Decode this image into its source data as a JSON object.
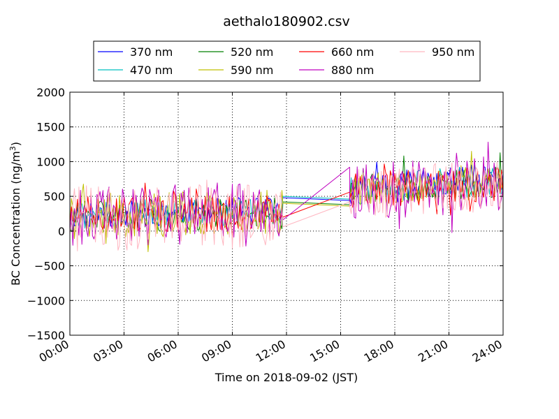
{
  "chart_data": {
    "type": "line",
    "title": "aethalo180902.csv",
    "xlabel": "Time on 2018-09-02 (JST)",
    "ylabel": "BC Concentration (ng/m³)",
    "xlim": [
      0,
      24
    ],
    "ylim": [
      -1500,
      2000
    ],
    "x_ticks": [
      0,
      3,
      6,
      9,
      12,
      15,
      18,
      21,
      24
    ],
    "x_tick_labels": [
      "00:00",
      "03:00",
      "06:00",
      "09:00",
      "12:00",
      "15:00",
      "18:00",
      "21:00",
      "24:00"
    ],
    "y_ticks": [
      -1500,
      -1000,
      -500,
      0,
      500,
      1000,
      1500,
      2000
    ],
    "y_tick_labels": [
      "−1500",
      "−1000",
      "−500",
      "0",
      "500",
      "1000",
      "1500",
      "2000"
    ],
    "grid": true,
    "legend_position": "top-center",
    "legend_columns": 4,
    "sampling_interval_minutes": 5,
    "gap": [
      11.8,
      15.5
    ],
    "series": [
      {
        "name": "370 nm",
        "color": "#0000ff",
        "gap_y": [
          480,
          440
        ],
        "segments": [
          {
            "x0": 0,
            "x1": 11.8,
            "base": 230,
            "trend": 80,
            "amp": 190,
            "seed": 11
          },
          {
            "x0": 15.5,
            "x1": 24,
            "base": 600,
            "trend": 150,
            "amp": 230,
            "seed": 12
          }
        ]
      },
      {
        "name": "470 nm",
        "color": "#00bfbf",
        "gap_y": [
          500,
          460
        ],
        "segments": [
          {
            "x0": 0,
            "x1": 11.8,
            "base": 220,
            "trend": 80,
            "amp": 200,
            "seed": 21
          },
          {
            "x0": 15.5,
            "x1": 24,
            "base": 590,
            "trend": 140,
            "amp": 230,
            "seed": 22
          }
        ]
      },
      {
        "name": "520 nm",
        "color": "#008000",
        "gap_y": [
          420,
          380
        ],
        "segments": [
          {
            "x0": 0,
            "x1": 11.8,
            "base": 210,
            "trend": 60,
            "amp": 240,
            "seed": 31
          },
          {
            "x0": 15.5,
            "x1": 24,
            "base": 580,
            "trend": 130,
            "amp": 230,
            "seed": 32
          }
        ]
      },
      {
        "name": "590 nm",
        "color": "#bfbf00",
        "gap_y": [
          400,
          360
        ],
        "segments": [
          {
            "x0": 0,
            "x1": 11.8,
            "base": 210,
            "trend": 60,
            "amp": 330,
            "seed": 41
          },
          {
            "x0": 15.5,
            "x1": 24,
            "base": 570,
            "trend": 130,
            "amp": 250,
            "seed": 42
          }
        ]
      },
      {
        "name": "660 nm",
        "color": "#ff0000",
        "gap_y": [
          200,
          560
        ],
        "segments": [
          {
            "x0": 0,
            "x1": 11.8,
            "base": 220,
            "trend": 60,
            "amp": 270,
            "seed": 51
          },
          {
            "x0": 15.5,
            "x1": 24,
            "base": 580,
            "trend": 120,
            "amp": 260,
            "seed": 52
          }
        ]
      },
      {
        "name": "880 nm",
        "color": "#bf00bf",
        "gap_y": [
          160,
          920
        ],
        "segments": [
          {
            "x0": 0,
            "x1": 11.8,
            "base": 200,
            "trend": 80,
            "amp": 440,
            "seed": 61
          },
          {
            "x0": 15.5,
            "x1": 24,
            "base": 560,
            "trend": 120,
            "amp": 420,
            "seed": 62
          }
        ]
      },
      {
        "name": "950 nm",
        "color": "#ffb6c1",
        "gap_y": [
          60,
          420
        ],
        "segments": [
          {
            "x0": 0,
            "x1": 11.8,
            "base": 180,
            "trend": 60,
            "amp": 480,
            "seed": 71
          },
          {
            "x0": 15.5,
            "x1": 24,
            "base": 540,
            "trend": 120,
            "amp": 380,
            "seed": 72
          }
        ]
      }
    ]
  }
}
